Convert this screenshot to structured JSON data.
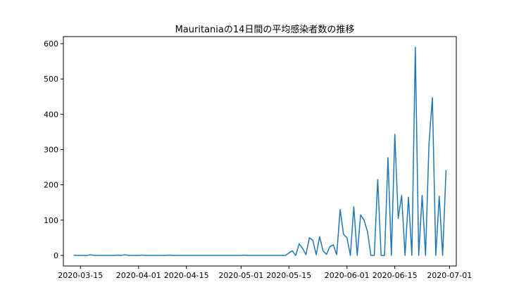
{
  "chart_data": {
    "type": "line",
    "title": "Mauritaniaの14日間の平均感染者数の推移",
    "xlabel": "",
    "ylabel": "",
    "x_start": "2020-03-13",
    "x_end": "2020-06-28",
    "xlim": [
      "2020-03-10",
      "2020-07-03"
    ],
    "ylim": [
      -30,
      620
    ],
    "x_ticks": [
      "2020-03-15",
      "2020-04-01",
      "2020-04-15",
      "2020-05-01",
      "2020-05-15",
      "2020-06-01",
      "2020-06-15",
      "2020-07-01"
    ],
    "y_ticks": [
      0,
      100,
      200,
      300,
      400,
      500,
      600
    ],
    "grid": false,
    "series": [
      {
        "color": "#1f77b4",
        "values": [
          1,
          0,
          0,
          0,
          0,
          2,
          0,
          0,
          0,
          0,
          0,
          0,
          0,
          1,
          0,
          2,
          0,
          0,
          0,
          0,
          1,
          0,
          0,
          0,
          0,
          0,
          0,
          0,
          1,
          0,
          0,
          0,
          0,
          0,
          0,
          0,
          0,
          0,
          0,
          0,
          0,
          0,
          0,
          0,
          0,
          0,
          0,
          0,
          0,
          0,
          1,
          0,
          0,
          0,
          0,
          0,
          0,
          0,
          0,
          0,
          0,
          0,
          0,
          7,
          13,
          0,
          33,
          20,
          2,
          50,
          43,
          2,
          53,
          13,
          3,
          25,
          30,
          2,
          130,
          60,
          50,
          0,
          138,
          0,
          115,
          100,
          68,
          0,
          0,
          215,
          0,
          0,
          277,
          0,
          343,
          105,
          170,
          0,
          165,
          0,
          590,
          0,
          170,
          0,
          315,
          447,
          0,
          168,
          0,
          242
        ]
      }
    ]
  }
}
